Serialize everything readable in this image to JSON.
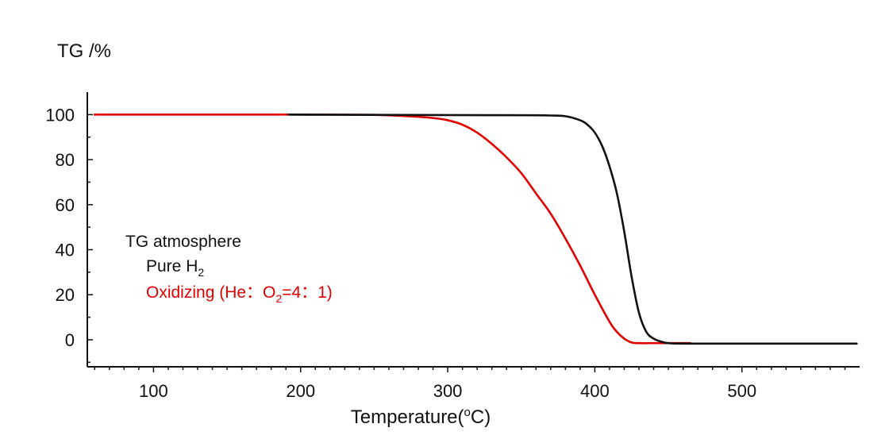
{
  "chart_data": {
    "type": "line",
    "ylabel": "TG /%",
    "xlabel": {
      "prefix": "Temperature(",
      "sup": "o",
      "suffix": "C)"
    },
    "xlim": [
      55,
      580
    ],
    "ylim": [
      -12,
      110
    ],
    "x_ticks": [
      100,
      200,
      300,
      400,
      500
    ],
    "y_ticks": [
      0,
      20,
      40,
      60,
      80,
      100
    ],
    "legend": {
      "title": "TG atmosphere",
      "entries": [
        {
          "prefix": "Pure H",
          "sub": "2",
          "suffix": "",
          "color": "#111111"
        },
        {
          "prefix": "Oxidizing (He：O",
          "sub": "2",
          "suffix": "=4：1)",
          "color": "#e00000"
        }
      ]
    },
    "series": [
      {
        "name": "Pure H2",
        "color": "#111111",
        "x": [
          192,
          250,
          300,
          360,
          370,
          380,
          390,
          395,
          400,
          405,
          410,
          415,
          420,
          425,
          430,
          435,
          440,
          445,
          450,
          460,
          500,
          578
        ],
        "y": [
          100,
          99.9,
          99.8,
          99.7,
          99.6,
          99.3,
          97.5,
          95.5,
          92,
          86,
          77,
          65,
          48,
          28,
          12,
          3.5,
          0.5,
          -0.8,
          -1.5,
          -1.7,
          -1.7,
          -1.7
        ]
      },
      {
        "name": "Oxidizing",
        "color": "#e00000",
        "x": [
          60,
          200,
          250,
          275,
          290,
          300,
          310,
          320,
          330,
          340,
          350,
          360,
          370,
          380,
          390,
          400,
          410,
          415,
          420,
          425,
          430,
          440,
          450,
          465
        ],
        "y": [
          100,
          100,
          99.9,
          99.2,
          98.5,
          97.5,
          95.5,
          92,
          87,
          81,
          74,
          65,
          56,
          45,
          33,
          20,
          8,
          3.5,
          0.5,
          -1.2,
          -1.5,
          -1.5,
          -1.5,
          -1.5
        ]
      }
    ]
  }
}
